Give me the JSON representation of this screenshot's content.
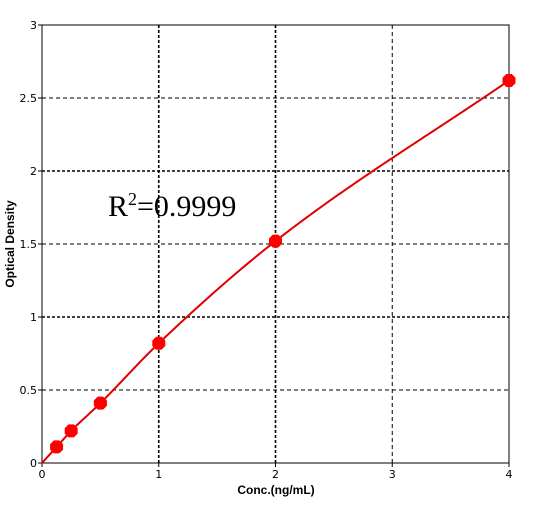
{
  "chart_data": {
    "type": "scatter",
    "title": "",
    "xlabel": "Conc.(ng/mL)",
    "ylabel": "Optical Density",
    "xlim": [
      0,
      4
    ],
    "ylim": [
      0,
      3
    ],
    "xticks": [
      "0",
      "1",
      "2",
      "3",
      "4"
    ],
    "yticks": [
      "0",
      "0.5",
      "1",
      "1.5",
      "2",
      "2.5",
      "3"
    ],
    "grid": true,
    "legend": "none",
    "points": {
      "x": [
        0.125,
        0.25,
        0.5,
        1,
        2,
        4
      ],
      "y": [
        0.11,
        0.22,
        0.41,
        0.82,
        1.52,
        2.62
      ]
    },
    "fit_curve": {
      "kind": "smooth fit through standards",
      "color": "#e00000"
    },
    "annotation": {
      "prefix": "R",
      "superscript": "2",
      "suffix": "=0.9999"
    },
    "colors": {
      "points": "#ff0000",
      "curve": "#e00000",
      "grid": "#000000"
    }
  }
}
